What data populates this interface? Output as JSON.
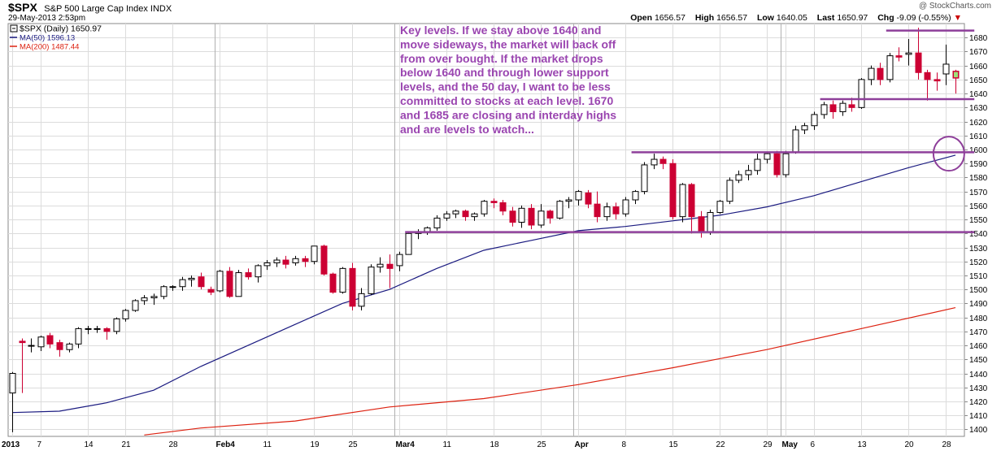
{
  "header": {
    "symbol": "$SPX",
    "name": "S&P 500 Large Cap Index INDX",
    "date": "29-May-2013 2:53pm",
    "credit": "@ StockCharts.com",
    "open_label": "Open",
    "open": "1656.57",
    "high_label": "High",
    "high": "1656.57",
    "low_label": "Low",
    "low": "1640.05",
    "last_label": "Last",
    "last": "1650.97",
    "chg_label": "Chg",
    "chg": "-9.09 (-0.55%)",
    "chg_arrow": "▼"
  },
  "legend": {
    "price": "$SPX (Daily) 1650.97",
    "ma50": "MA(50) 1596.13",
    "ma200": "MA(200) 1487.44"
  },
  "annotation": [
    "Key levels. If we stay above 1640 and",
    "move sideways, the market will back off",
    "from over bought. If the market drops",
    "below 1640 and through lower support",
    "levels, and the 50 day, I want to be less",
    "committed to stocks at each level. 1670",
    "and 1685 are closing and interday highs",
    "and are levels to watch..."
  ],
  "colors": {
    "up": "#000000",
    "down": "#cc0033",
    "ma50": "#1a1a80",
    "ma200": "#dd2211",
    "level": "#8e3f9a",
    "annotation": "#9a45b0",
    "grid": "#dcdcdc",
    "last_highlight": "#9ee07a"
  },
  "chart_data": {
    "type": "candlestick",
    "title": "$SPX (Daily) 1650.97",
    "ylim": [
      1395,
      1690
    ],
    "y_ticks": [
      1400,
      1410,
      1420,
      1430,
      1440,
      1450,
      1460,
      1470,
      1480,
      1490,
      1500,
      1510,
      1520,
      1530,
      1540,
      1550,
      1560,
      1570,
      1580,
      1590,
      1600,
      1610,
      1620,
      1630,
      1640,
      1650,
      1660,
      1670,
      1680
    ],
    "x_tick_labels": [
      {
        "label": "2013",
        "i": 0,
        "bold": true
      },
      {
        "label": "7",
        "i": 3
      },
      {
        "label": "14",
        "i": 8
      },
      {
        "label": "21",
        "i": 12
      },
      {
        "label": "28",
        "i": 17
      },
      {
        "label": "Feb4",
        "i": 22,
        "bold": true
      },
      {
        "label": "11",
        "i": 27
      },
      {
        "label": "19",
        "i": 32
      },
      {
        "label": "25",
        "i": 36
      },
      {
        "label": "Mar4",
        "i": 41,
        "bold": true
      },
      {
        "label": "11",
        "i": 46
      },
      {
        "label": "18",
        "i": 51
      },
      {
        "label": "25",
        "i": 56
      },
      {
        "label": "Apr",
        "i": 60,
        "bold": true
      },
      {
        "label": "8",
        "i": 65
      },
      {
        "label": "15",
        "i": 70
      },
      {
        "label": "22",
        "i": 75
      },
      {
        "label": "29",
        "i": 80
      },
      {
        "label": "May",
        "i": 82,
        "bold": true
      },
      {
        "label": "6",
        "i": 85
      },
      {
        "label": "13",
        "i": 90
      },
      {
        "label": "20",
        "i": 95
      },
      {
        "label": "28",
        "i": 99
      }
    ],
    "month_separators": [
      0,
      22,
      41,
      60,
      82
    ],
    "candles": [
      [
        1426,
        1440,
        1398,
        1441
      ],
      [
        1463,
        1462,
        1426,
        1465
      ],
      [
        1460,
        1460,
        1455,
        1465
      ],
      [
        1459,
        1466,
        1456,
        1467
      ],
      [
        1467,
        1461,
        1458,
        1469
      ],
      [
        1462,
        1457,
        1452,
        1464
      ],
      [
        1457,
        1461,
        1455,
        1462
      ],
      [
        1461,
        1472,
        1458,
        1473
      ],
      [
        1472,
        1472,
        1468,
        1474
      ],
      [
        1472,
        1472,
        1469,
        1474
      ],
      [
        1472,
        1470,
        1464,
        1473
      ],
      [
        1470,
        1479,
        1468,
        1480
      ],
      [
        1479,
        1485,
        1477,
        1486
      ],
      [
        1485,
        1492,
        1484,
        1493
      ],
      [
        1492,
        1494,
        1489,
        1496
      ],
      [
        1494,
        1495,
        1489,
        1497
      ],
      [
        1495,
        1502,
        1493,
        1503
      ],
      [
        1502,
        1502,
        1499,
        1503
      ],
      [
        1502,
        1507,
        1499,
        1509
      ],
      [
        1507,
        1508,
        1502,
        1510
      ],
      [
        1509,
        1502,
        1500,
        1512
      ],
      [
        1500,
        1498,
        1496,
        1502
      ],
      [
        1499,
        1513,
        1498,
        1514
      ],
      [
        1513,
        1495,
        1494,
        1516
      ],
      [
        1495,
        1512,
        1495,
        1514
      ],
      [
        1512,
        1509,
        1507,
        1515
      ],
      [
        1509,
        1517,
        1505,
        1518
      ],
      [
        1517,
        1519,
        1514,
        1521
      ],
      [
        1519,
        1521,
        1516,
        1523
      ],
      [
        1521,
        1518,
        1515,
        1524
      ],
      [
        1519,
        1522,
        1517,
        1524
      ],
      [
        1522,
        1520,
        1516,
        1524
      ],
      [
        1520,
        1531,
        1518,
        1531
      ],
      [
        1531,
        1511,
        1510,
        1532
      ],
      [
        1511,
        1498,
        1497,
        1512
      ],
      [
        1498,
        1515,
        1497,
        1516
      ],
      [
        1515,
        1488,
        1485,
        1519
      ],
      [
        1488,
        1497,
        1485,
        1501
      ],
      [
        1497,
        1516,
        1496,
        1518
      ],
      [
        1516,
        1518,
        1512,
        1523
      ],
      [
        1518,
        1515,
        1501,
        1525
      ],
      [
        1517,
        1525,
        1513,
        1527
      ],
      [
        1525,
        1540,
        1525,
        1541
      ],
      [
        1540,
        1541,
        1536,
        1543
      ],
      [
        1541,
        1544,
        1539,
        1545
      ],
      [
        1544,
        1551,
        1542,
        1553
      ],
      [
        1551,
        1554,
        1549,
        1556
      ],
      [
        1554,
        1556,
        1551,
        1557
      ],
      [
        1556,
        1552,
        1549,
        1557
      ],
      [
        1552,
        1554,
        1549,
        1555
      ],
      [
        1554,
        1563,
        1552,
        1564
      ],
      [
        1563,
        1562,
        1558,
        1565
      ],
      [
        1562,
        1556,
        1553,
        1564
      ],
      [
        1556,
        1548,
        1545,
        1559
      ],
      [
        1548,
        1558,
        1544,
        1560
      ],
      [
        1558,
        1546,
        1543,
        1561
      ],
      [
        1546,
        1556,
        1544,
        1561
      ],
      [
        1556,
        1551,
        1547,
        1557
      ],
      [
        1551,
        1563,
        1550,
        1564
      ],
      [
        1563,
        1564,
        1558,
        1566
      ],
      [
        1564,
        1570,
        1560,
        1571
      ],
      [
        1569,
        1561,
        1558,
        1571
      ],
      [
        1561,
        1552,
        1548,
        1570
      ],
      [
        1552,
        1559,
        1549,
        1562
      ],
      [
        1559,
        1554,
        1550,
        1562
      ],
      [
        1554,
        1564,
        1552,
        1566
      ],
      [
        1564,
        1570,
        1561,
        1571
      ],
      [
        1570,
        1589,
        1568,
        1591
      ],
      [
        1589,
        1593,
        1586,
        1597
      ],
      [
        1593,
        1590,
        1586,
        1595
      ],
      [
        1590,
        1552,
        1550,
        1593
      ],
      [
        1552,
        1575,
        1548,
        1576
      ],
      [
        1575,
        1552,
        1540,
        1576
      ],
      [
        1552,
        1541,
        1537,
        1556
      ],
      [
        1541,
        1555,
        1539,
        1557
      ],
      [
        1555,
        1563,
        1554,
        1564
      ],
      [
        1563,
        1578,
        1561,
        1580
      ],
      [
        1578,
        1582,
        1576,
        1585
      ],
      [
        1582,
        1585,
        1578,
        1589
      ],
      [
        1585,
        1593,
        1582,
        1597
      ],
      [
        1593,
        1597,
        1590,
        1598
      ],
      [
        1597,
        1582,
        1580,
        1599
      ],
      [
        1582,
        1597,
        1580,
        1599
      ],
      [
        1598,
        1614,
        1597,
        1617
      ],
      [
        1614,
        1617,
        1611,
        1619
      ],
      [
        1617,
        1625,
        1614,
        1627
      ],
      [
        1625,
        1632,
        1622,
        1634
      ],
      [
        1632,
        1627,
        1622,
        1635
      ],
      [
        1627,
        1633,
        1624,
        1635
      ],
      [
        1632,
        1630,
        1627,
        1637
      ],
      [
        1630,
        1650,
        1629,
        1651
      ],
      [
        1650,
        1658,
        1646,
        1660
      ],
      [
        1658,
        1650,
        1646,
        1662
      ],
      [
        1650,
        1667,
        1648,
        1669
      ],
      [
        1667,
        1666,
        1663,
        1673
      ],
      [
        1668,
        1669,
        1660,
        1679
      ],
      [
        1669,
        1655,
        1650,
        1687
      ],
      [
        1655,
        1650,
        1635,
        1657
      ],
      [
        1650,
        1649,
        1642,
        1655
      ],
      [
        1654,
        1661,
        1646,
        1675
      ],
      [
        1656,
        1651,
        1640,
        1657
      ]
    ],
    "series": [
      {
        "name": "MA(50) 1596.13",
        "points": [
          [
            0,
            1412
          ],
          [
            5,
            1413
          ],
          [
            10,
            1419
          ],
          [
            15,
            1428
          ],
          [
            20,
            1445
          ],
          [
            25,
            1460
          ],
          [
            30,
            1475
          ],
          [
            35,
            1490
          ],
          [
            40,
            1500
          ],
          [
            45,
            1515
          ],
          [
            50,
            1528
          ],
          [
            55,
            1535
          ],
          [
            60,
            1542
          ],
          [
            65,
            1545
          ],
          [
            70,
            1549
          ],
          [
            75,
            1553
          ],
          [
            80,
            1559
          ],
          [
            85,
            1567
          ],
          [
            90,
            1577
          ],
          [
            95,
            1587
          ],
          [
            100,
            1596
          ]
        ]
      },
      {
        "name": "MA(200) 1487.44",
        "points": [
          [
            14,
            1396
          ],
          [
            20,
            1401
          ],
          [
            30,
            1406
          ],
          [
            40,
            1416
          ],
          [
            50,
            1422
          ],
          [
            60,
            1432
          ],
          [
            70,
            1444
          ],
          [
            80,
            1457
          ],
          [
            90,
            1472
          ],
          [
            100,
            1487
          ]
        ]
      }
    ],
    "levels": [
      {
        "y": 1685,
        "from": 93,
        "to": 102
      },
      {
        "y": 1636,
        "from": 86,
        "to": 102
      },
      {
        "y": 1598,
        "from": 66,
        "to": 102
      },
      {
        "y": 1541,
        "from": 42,
        "to": 102
      }
    ]
  }
}
